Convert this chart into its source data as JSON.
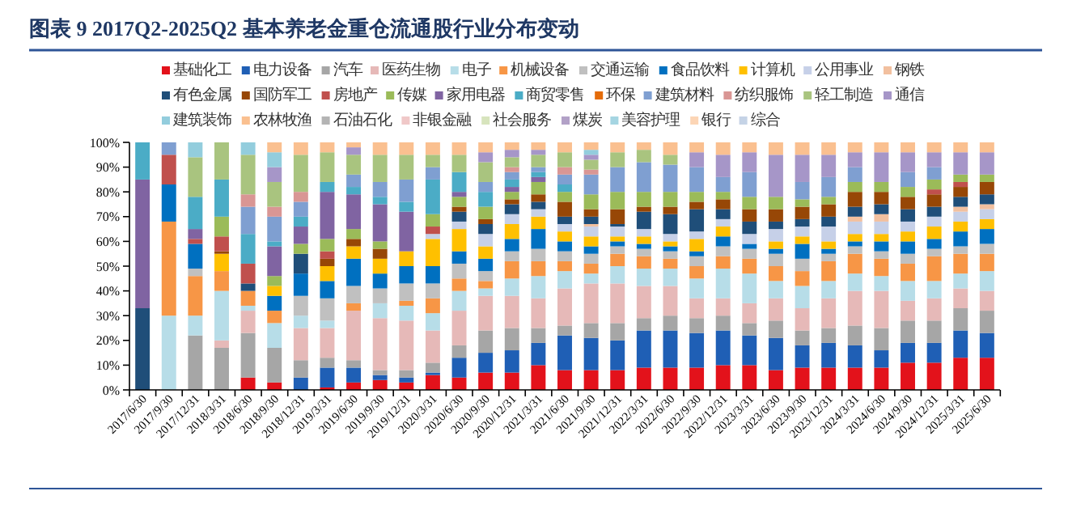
{
  "chart_data": {
    "type": "bar",
    "stacked": true,
    "title": "图表 9   2017Q2-2025Q2 基本养老金重仓流通股行业分布变动",
    "categories": [
      "2017/6/30",
      "2017/9/30",
      "2017/12/31",
      "2018/3/31",
      "2018/6/30",
      "2018/9/30",
      "2018/12/31",
      "2019/3/31",
      "2019/6/30",
      "2019/9/30",
      "2019/12/31",
      "2020/3/31",
      "2020/6/30",
      "2020/9/30",
      "2020/12/31",
      "2021/3/31",
      "2021/6/30",
      "2021/9/30",
      "2021/12/31",
      "2022/3/31",
      "2022/6/30",
      "2022/9/30",
      "2022/12/31",
      "2023/3/31",
      "2023/6/30",
      "2023/9/30",
      "2023/12/31",
      "2024/3/31",
      "2024/6/30",
      "2024/9/30",
      "2024/12/31",
      "2025/3/31",
      "2025/6/30"
    ],
    "ylim": [
      0,
      100
    ],
    "yticks": [
      {
        "value": 0,
        "label": "0%"
      },
      {
        "value": 10,
        "label": "10%"
      },
      {
        "value": 20,
        "label": "20%"
      },
      {
        "value": 30,
        "label": "30%"
      },
      {
        "value": 40,
        "label": "40%"
      },
      {
        "value": 50,
        "label": "50%"
      },
      {
        "value": 60,
        "label": "60%"
      },
      {
        "value": 70,
        "label": "70%"
      },
      {
        "value": 80,
        "label": "80%"
      },
      {
        "value": 90,
        "label": "90%"
      },
      {
        "value": 100,
        "label": "100%"
      }
    ],
    "grid": false,
    "legend": "top",
    "series": [
      {
        "name": "基础化工",
        "color": "#e3121b",
        "values": [
          0,
          0,
          0,
          0,
          5,
          3,
          0,
          1,
          3,
          4,
          3,
          6,
          5,
          7,
          7,
          10,
          8,
          8,
          8,
          9,
          9,
          9,
          10,
          10,
          8,
          9,
          9,
          9,
          9,
          11,
          11,
          13,
          13
        ]
      },
      {
        "name": "电力设备",
        "color": "#1f5fb5",
        "values": [
          0,
          0,
          0,
          0,
          0,
          0,
          5,
          8,
          6,
          2,
          2,
          1,
          8,
          8,
          9,
          9,
          14,
          13,
          12,
          15,
          15,
          14,
          14,
          12,
          13,
          9,
          10,
          9,
          7,
          8,
          8,
          11,
          10
        ]
      },
      {
        "name": "汽车",
        "color": "#a6a6a6",
        "values": [
          0,
          0,
          22,
          17,
          18,
          14,
          7,
          4,
          3,
          2,
          3,
          4,
          5,
          9,
          9,
          6,
          4,
          6,
          7,
          5,
          6,
          6,
          6,
          5,
          7,
          6,
          6,
          8,
          9,
          9,
          9,
          9,
          9
        ]
      },
      {
        "name": "医药生物",
        "color": "#e6b9b8",
        "values": [
          0,
          0,
          0,
          3,
          9,
          0,
          13,
          12,
          20,
          21,
          20,
          13,
          14,
          14,
          13,
          12,
          15,
          16,
          16,
          13,
          12,
          8,
          7,
          8,
          9,
          9,
          12,
          14,
          15,
          8,
          9,
          8,
          8
        ]
      },
      {
        "name": "电子",
        "color": "#b7dde8",
        "values": [
          0,
          30,
          8,
          20,
          2,
          10,
          5,
          3,
          0,
          6,
          6,
          7,
          8,
          3,
          7,
          9,
          7,
          4,
          7,
          7,
          7,
          8,
          12,
          12,
          7,
          9,
          7,
          7,
          6,
          8,
          7,
          6,
          8
        ]
      },
      {
        "name": "机械设备",
        "color": "#f79646",
        "values": [
          0,
          38,
          16,
          8,
          6,
          5,
          0,
          0,
          3,
          0,
          2,
          6,
          5,
          3,
          7,
          6,
          4,
          4,
          5,
          5,
          4,
          5,
          5,
          6,
          6,
          6,
          8,
          8,
          7,
          7,
          10,
          8,
          7
        ]
      },
      {
        "name": "交通运输",
        "color": "#c0c0c0",
        "values": [
          0,
          0,
          3,
          0,
          0,
          0,
          8,
          9,
          7,
          6,
          7,
          6,
          6,
          4,
          4,
          5,
          4,
          4,
          3,
          3,
          3,
          4,
          4,
          4,
          5,
          5,
          3,
          3,
          3,
          4,
          3,
          3,
          4
        ]
      },
      {
        "name": "食品饮料",
        "color": "#0070c0",
        "values": [
          0,
          15,
          10,
          0,
          0,
          6,
          9,
          7,
          11,
          6,
          7,
          7,
          5,
          5,
          5,
          8,
          4,
          3,
          2,
          2,
          2,
          2,
          4,
          2,
          2,
          6,
          2,
          2,
          4,
          5,
          4,
          6,
          6
        ]
      },
      {
        "name": "计算机",
        "color": "#ffc000",
        "values": [
          0,
          0,
          0,
          7,
          0,
          4,
          0,
          6,
          5,
          6,
          6,
          11,
          9,
          5,
          6,
          5,
          4,
          4,
          2,
          3,
          2,
          5,
          4,
          0,
          3,
          3,
          3,
          3,
          3,
          4,
          5,
          4,
          4
        ]
      },
      {
        "name": "公用事业",
        "color": "#c6d0e8",
        "values": [
          0,
          0,
          0,
          0,
          0,
          0,
          0,
          0,
          0,
          0,
          0,
          2,
          3,
          5,
          4,
          3,
          3,
          4,
          4,
          3,
          3,
          3,
          3,
          4,
          5,
          4,
          6,
          5,
          5,
          4,
          4,
          4,
          4
        ]
      },
      {
        "name": "钢铁",
        "color": "#f2c09f",
        "values": [
          0,
          0,
          0,
          0,
          0,
          0,
          0,
          0,
          0,
          0,
          0,
          0,
          0,
          0,
          0,
          0,
          0,
          1,
          0,
          0,
          0,
          0,
          0,
          0,
          0,
          0,
          0,
          2,
          3,
          0,
          0,
          2,
          2
        ]
      },
      {
        "name": "有色金属",
        "color": "#1f4e79",
        "values": [
          33,
          0,
          0,
          0,
          3,
          0,
          8,
          0,
          0,
          0,
          0,
          0,
          4,
          4,
          4,
          3,
          3,
          3,
          1,
          7,
          8,
          9,
          4,
          5,
          3,
          3,
          4,
          4,
          4,
          5,
          4,
          4,
          4
        ]
      },
      {
        "name": "国防军工",
        "color": "#974706",
        "values": [
          0,
          0,
          0,
          1,
          0,
          0,
          0,
          3,
          3,
          4,
          0,
          0,
          2,
          2,
          2,
          3,
          6,
          3,
          6,
          2,
          3,
          3,
          4,
          5,
          5,
          5,
          5,
          6,
          5,
          5,
          5,
          4,
          5
        ]
      },
      {
        "name": "房地产",
        "color": "#c0504d",
        "values": [
          0,
          12,
          2,
          6,
          8,
          0,
          0,
          3,
          0,
          0,
          0,
          3,
          0,
          0,
          0,
          0,
          0,
          0,
          0,
          0,
          0,
          0,
          0,
          0,
          0,
          0,
          0,
          0,
          0,
          0,
          2,
          2,
          0
        ]
      },
      {
        "name": "传媒",
        "color": "#9bbb59",
        "values": [
          0,
          0,
          0,
          8,
          0,
          4,
          4,
          5,
          4,
          3,
          0,
          5,
          4,
          5,
          3,
          5,
          4,
          6,
          7,
          6,
          6,
          4,
          3,
          5,
          5,
          3,
          3,
          4,
          4,
          4,
          4,
          3,
          3
        ]
      },
      {
        "name": "家用电器",
        "color": "#8064a2",
        "values": [
          52,
          0,
          4,
          0,
          0,
          12,
          7,
          19,
          14,
          15,
          16,
          0,
          2,
          0,
          2,
          2,
          0,
          0,
          0,
          0,
          0,
          0,
          0,
          0,
          0,
          0,
          0,
          0,
          0,
          0,
          0,
          0,
          0
        ]
      },
      {
        "name": "商贸零售",
        "color": "#4bacc6",
        "values": [
          15,
          0,
          13,
          15,
          12,
          2,
          4,
          4,
          3,
          3,
          4,
          14,
          8,
          6,
          3,
          2,
          3,
          0,
          0,
          0,
          0,
          0,
          0,
          0,
          0,
          0,
          0,
          0,
          0,
          0,
          0,
          0,
          0
        ]
      },
      {
        "name": "环保",
        "color": "#e46c0a",
        "values": [
          0,
          0,
          0,
          0,
          0,
          0,
          0,
          0,
          0,
          0,
          0,
          0,
          0,
          0,
          0,
          0,
          0,
          0,
          0,
          0,
          0,
          0,
          0,
          0,
          0,
          0,
          0,
          0,
          0,
          0,
          0,
          0,
          0
        ]
      },
      {
        "name": "建筑材料",
        "color": "#7f9fd1",
        "values": [
          0,
          5,
          0,
          0,
          11,
          10,
          6,
          0,
          5,
          6,
          9,
          5,
          0,
          4,
          3,
          2,
          4,
          8,
          10,
          12,
          11,
          10,
          6,
          10,
          0,
          7,
          8,
          6,
          0,
          6,
          5,
          0,
          0
        ]
      },
      {
        "name": "纺织服饰",
        "color": "#d99694",
        "values": [
          0,
          0,
          0,
          0,
          5,
          4,
          4,
          0,
          0,
          0,
          0,
          0,
          0,
          0,
          2,
          0,
          3,
          2,
          0,
          0,
          0,
          0,
          0,
          0,
          0,
          0,
          0,
          0,
          0,
          0,
          0,
          0,
          0
        ]
      },
      {
        "name": "轻工制造",
        "color": "#a9c47f",
        "values": [
          0,
          0,
          16,
          15,
          16,
          10,
          15,
          12,
          8,
          11,
          10,
          5,
          7,
          8,
          4,
          5,
          6,
          4,
          6,
          5,
          4,
          0,
          0,
          0,
          0,
          0,
          0,
          0,
          0,
          0,
          0,
          0,
          0
        ]
      },
      {
        "name": "通信",
        "color": "#a696c8",
        "values": [
          0,
          0,
          0,
          0,
          0,
          6,
          0,
          0,
          3,
          0,
          0,
          0,
          0,
          4,
          3,
          2,
          0,
          2,
          0,
          0,
          0,
          6,
          9,
          8,
          17,
          11,
          9,
          6,
          12,
          8,
          6,
          9,
          9
        ]
      },
      {
        "name": "建筑装饰",
        "color": "#93cddd",
        "values": [
          0,
          0,
          6,
          0,
          5,
          6,
          0,
          0,
          0,
          0,
          0,
          0,
          0,
          0,
          0,
          0,
          0,
          2,
          0,
          0,
          0,
          0,
          0,
          0,
          0,
          0,
          0,
          0,
          0,
          0,
          0,
          0,
          0
        ]
      },
      {
        "name": "农林牧渔",
        "color": "#fac090",
        "values": [
          0,
          0,
          0,
          0,
          0,
          4,
          5,
          4,
          2,
          5,
          5,
          5,
          5,
          4,
          3,
          3,
          4,
          3,
          4,
          3,
          5,
          4,
          5,
          4,
          5,
          5,
          5,
          4,
          4,
          4,
          4,
          4,
          4
        ]
      },
      {
        "name": "石油石化",
        "color": "#b4b4b4",
        "values": [
          0,
          0,
          0,
          0,
          0,
          0,
          0,
          0,
          0,
          0,
          0,
          0,
          0,
          0,
          0,
          0,
          0,
          0,
          0,
          0,
          0,
          0,
          0,
          0,
          0,
          0,
          0,
          0,
          0,
          0,
          0,
          0,
          0
        ]
      },
      {
        "name": "非银金融",
        "color": "#f0c8c8",
        "values": [
          0,
          0,
          0,
          0,
          0,
          0,
          0,
          0,
          0,
          0,
          0,
          0,
          0,
          0,
          0,
          0,
          0,
          0,
          0,
          0,
          0,
          0,
          0,
          0,
          0,
          0,
          0,
          0,
          0,
          0,
          0,
          0,
          0
        ]
      },
      {
        "name": "社会服务",
        "color": "#d7e4bd",
        "values": [
          0,
          0,
          0,
          0,
          0,
          0,
          0,
          0,
          0,
          0,
          0,
          0,
          0,
          0,
          0,
          0,
          0,
          0,
          0,
          0,
          0,
          0,
          0,
          0,
          0,
          0,
          0,
          0,
          0,
          0,
          0,
          0,
          0
        ]
      },
      {
        "name": "煤炭",
        "color": "#b2a1c7",
        "values": [
          0,
          0,
          0,
          0,
          0,
          0,
          0,
          0,
          0,
          0,
          0,
          0,
          0,
          0,
          0,
          0,
          0,
          0,
          0,
          0,
          0,
          0,
          0,
          0,
          0,
          0,
          0,
          0,
          0,
          0,
          0,
          0,
          0
        ]
      },
      {
        "name": "美容护理",
        "color": "#a5d5e2",
        "values": [
          0,
          0,
          0,
          0,
          0,
          0,
          0,
          0,
          0,
          0,
          0,
          0,
          0,
          0,
          0,
          0,
          0,
          0,
          0,
          0,
          0,
          0,
          0,
          0,
          0,
          0,
          0,
          0,
          0,
          0,
          0,
          0,
          0
        ]
      },
      {
        "name": "银行",
        "color": "#fcd5b5",
        "values": [
          0,
          0,
          0,
          0,
          0,
          0,
          0,
          0,
          0,
          0,
          0,
          0,
          0,
          0,
          0,
          0,
          0,
          0,
          0,
          0,
          0,
          0,
          0,
          0,
          0,
          0,
          0,
          0,
          0,
          0,
          0,
          0,
          0
        ]
      },
      {
        "name": "综合",
        "color": "#c5d3e6",
        "values": [
          0,
          0,
          0,
          0,
          0,
          0,
          0,
          0,
          0,
          0,
          0,
          0,
          0,
          0,
          0,
          0,
          0,
          0,
          0,
          0,
          0,
          0,
          0,
          0,
          0,
          0,
          0,
          0,
          0,
          0,
          0,
          0,
          0
        ]
      }
    ]
  }
}
